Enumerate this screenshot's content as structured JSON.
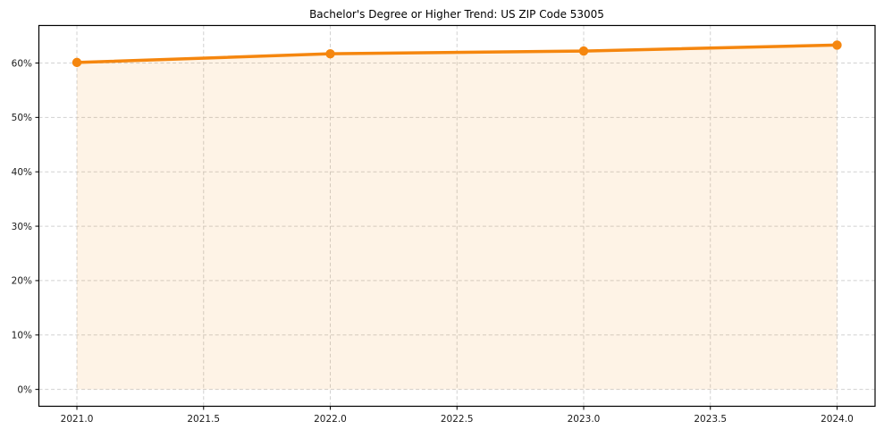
{
  "chart_data": {
    "type": "area",
    "title": "Bachelor's Degree or Higher Trend: US ZIP Code 53005",
    "series_name": "Bachelor's Degree or Higher",
    "x": [
      2021,
      2022,
      2023,
      2024
    ],
    "values": [
      60.1,
      61.7,
      62.2,
      63.3
    ],
    "xlabel": "",
    "ylabel": "",
    "xlim": [
      2020.85,
      2024.15
    ],
    "ylim": [
      -3.1,
      66.9
    ],
    "x_ticks": [
      2021.0,
      2021.5,
      2022.0,
      2022.5,
      2023.0,
      2023.5,
      2024.0
    ],
    "x_tick_labels": [
      "2021.0",
      "2021.5",
      "2022.0",
      "2022.5",
      "2023.0",
      "2023.5",
      "2024.0"
    ],
    "y_ticks": [
      0,
      10,
      20,
      30,
      40,
      50,
      60
    ],
    "y_tick_labels": [
      "0%",
      "10%",
      "20%",
      "30%",
      "40%",
      "50%",
      "60%"
    ],
    "fill_baseline": 0,
    "grid": true,
    "grid_style": "dashed",
    "legend": "none",
    "colors": {
      "line": "#f5860e",
      "marker": "#f5860e",
      "fill_opacity": 0.1,
      "grid": "#c9c9c9",
      "spine": "#000000",
      "tick_text": "#1a1a1a",
      "title_text": "#000000",
      "background": "#ffffff"
    }
  }
}
